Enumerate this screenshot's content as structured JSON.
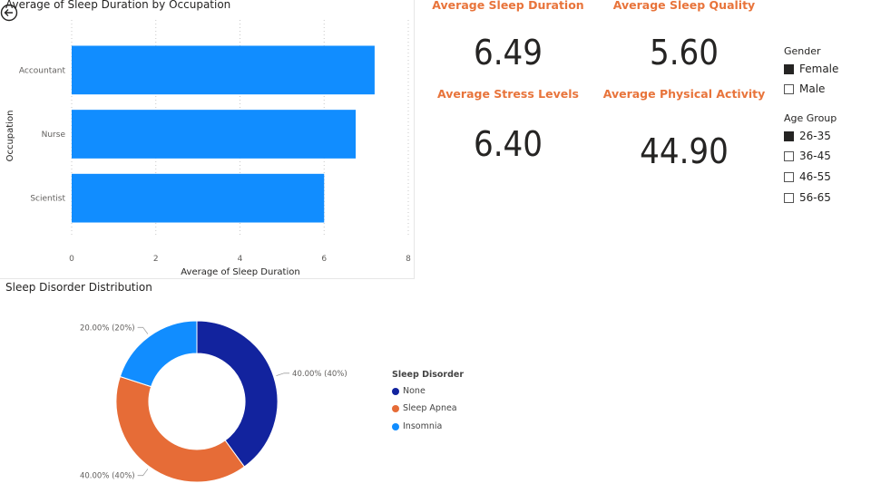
{
  "bar_chart": {
    "title": "Average of Sleep Duration by Occupation"
  },
  "kpis": [
    {
      "label": "Average Sleep Duration",
      "value": "6.49"
    },
    {
      "label": "Average Sleep Quality",
      "value": "5.60"
    },
    {
      "label": "Average Stress Levels",
      "value": "6.40"
    },
    {
      "label": "Average Physical Activity",
      "value": "44.90"
    }
  ],
  "slicers": {
    "gender": {
      "title": "Gender",
      "items": [
        {
          "label": "Female",
          "checked": true
        },
        {
          "label": "Male",
          "checked": false
        }
      ]
    },
    "age_group": {
      "title": "Age Group",
      "items": [
        {
          "label": "26-35",
          "checked": true
        },
        {
          "label": "36-45",
          "checked": false
        },
        {
          "label": "46-55",
          "checked": false
        },
        {
          "label": "56-65",
          "checked": false
        }
      ]
    }
  },
  "donut": {
    "title": "Sleep Disorder Distribution"
  },
  "colors": {
    "bar": "#118dff",
    "none": "#12239e",
    "sleep_apnea": "#e66c37",
    "insomnia": "#118dff",
    "kpi_label": "#e8743b"
  },
  "chart_data": [
    {
      "type": "bar",
      "orientation": "horizontal",
      "title": "Average of Sleep Duration by Occupation",
      "xlabel": "Average of Sleep Duration",
      "ylabel": "Occupation",
      "categories": [
        "Accountant",
        "Nurse",
        "Scientist"
      ],
      "values": [
        7.2,
        6.75,
        6.0
      ],
      "xlim": [
        0,
        8
      ],
      "xticks": [
        0,
        2,
        4,
        6,
        8
      ],
      "grid": true,
      "color": "#118dff"
    },
    {
      "type": "pie",
      "donut": true,
      "title": "Sleep Disorder Distribution",
      "legend_title": "Sleep Disorder",
      "legend_placement": "right",
      "labels": [
        "None",
        "Sleep Apnea",
        "Insomnia"
      ],
      "values": [
        40,
        40,
        20
      ],
      "data_labels": [
        "40.00% (40%)",
        "40.00% (40%)",
        "20.00% (20%)"
      ],
      "colors": [
        "#12239e",
        "#e66c37",
        "#118dff"
      ]
    }
  ]
}
